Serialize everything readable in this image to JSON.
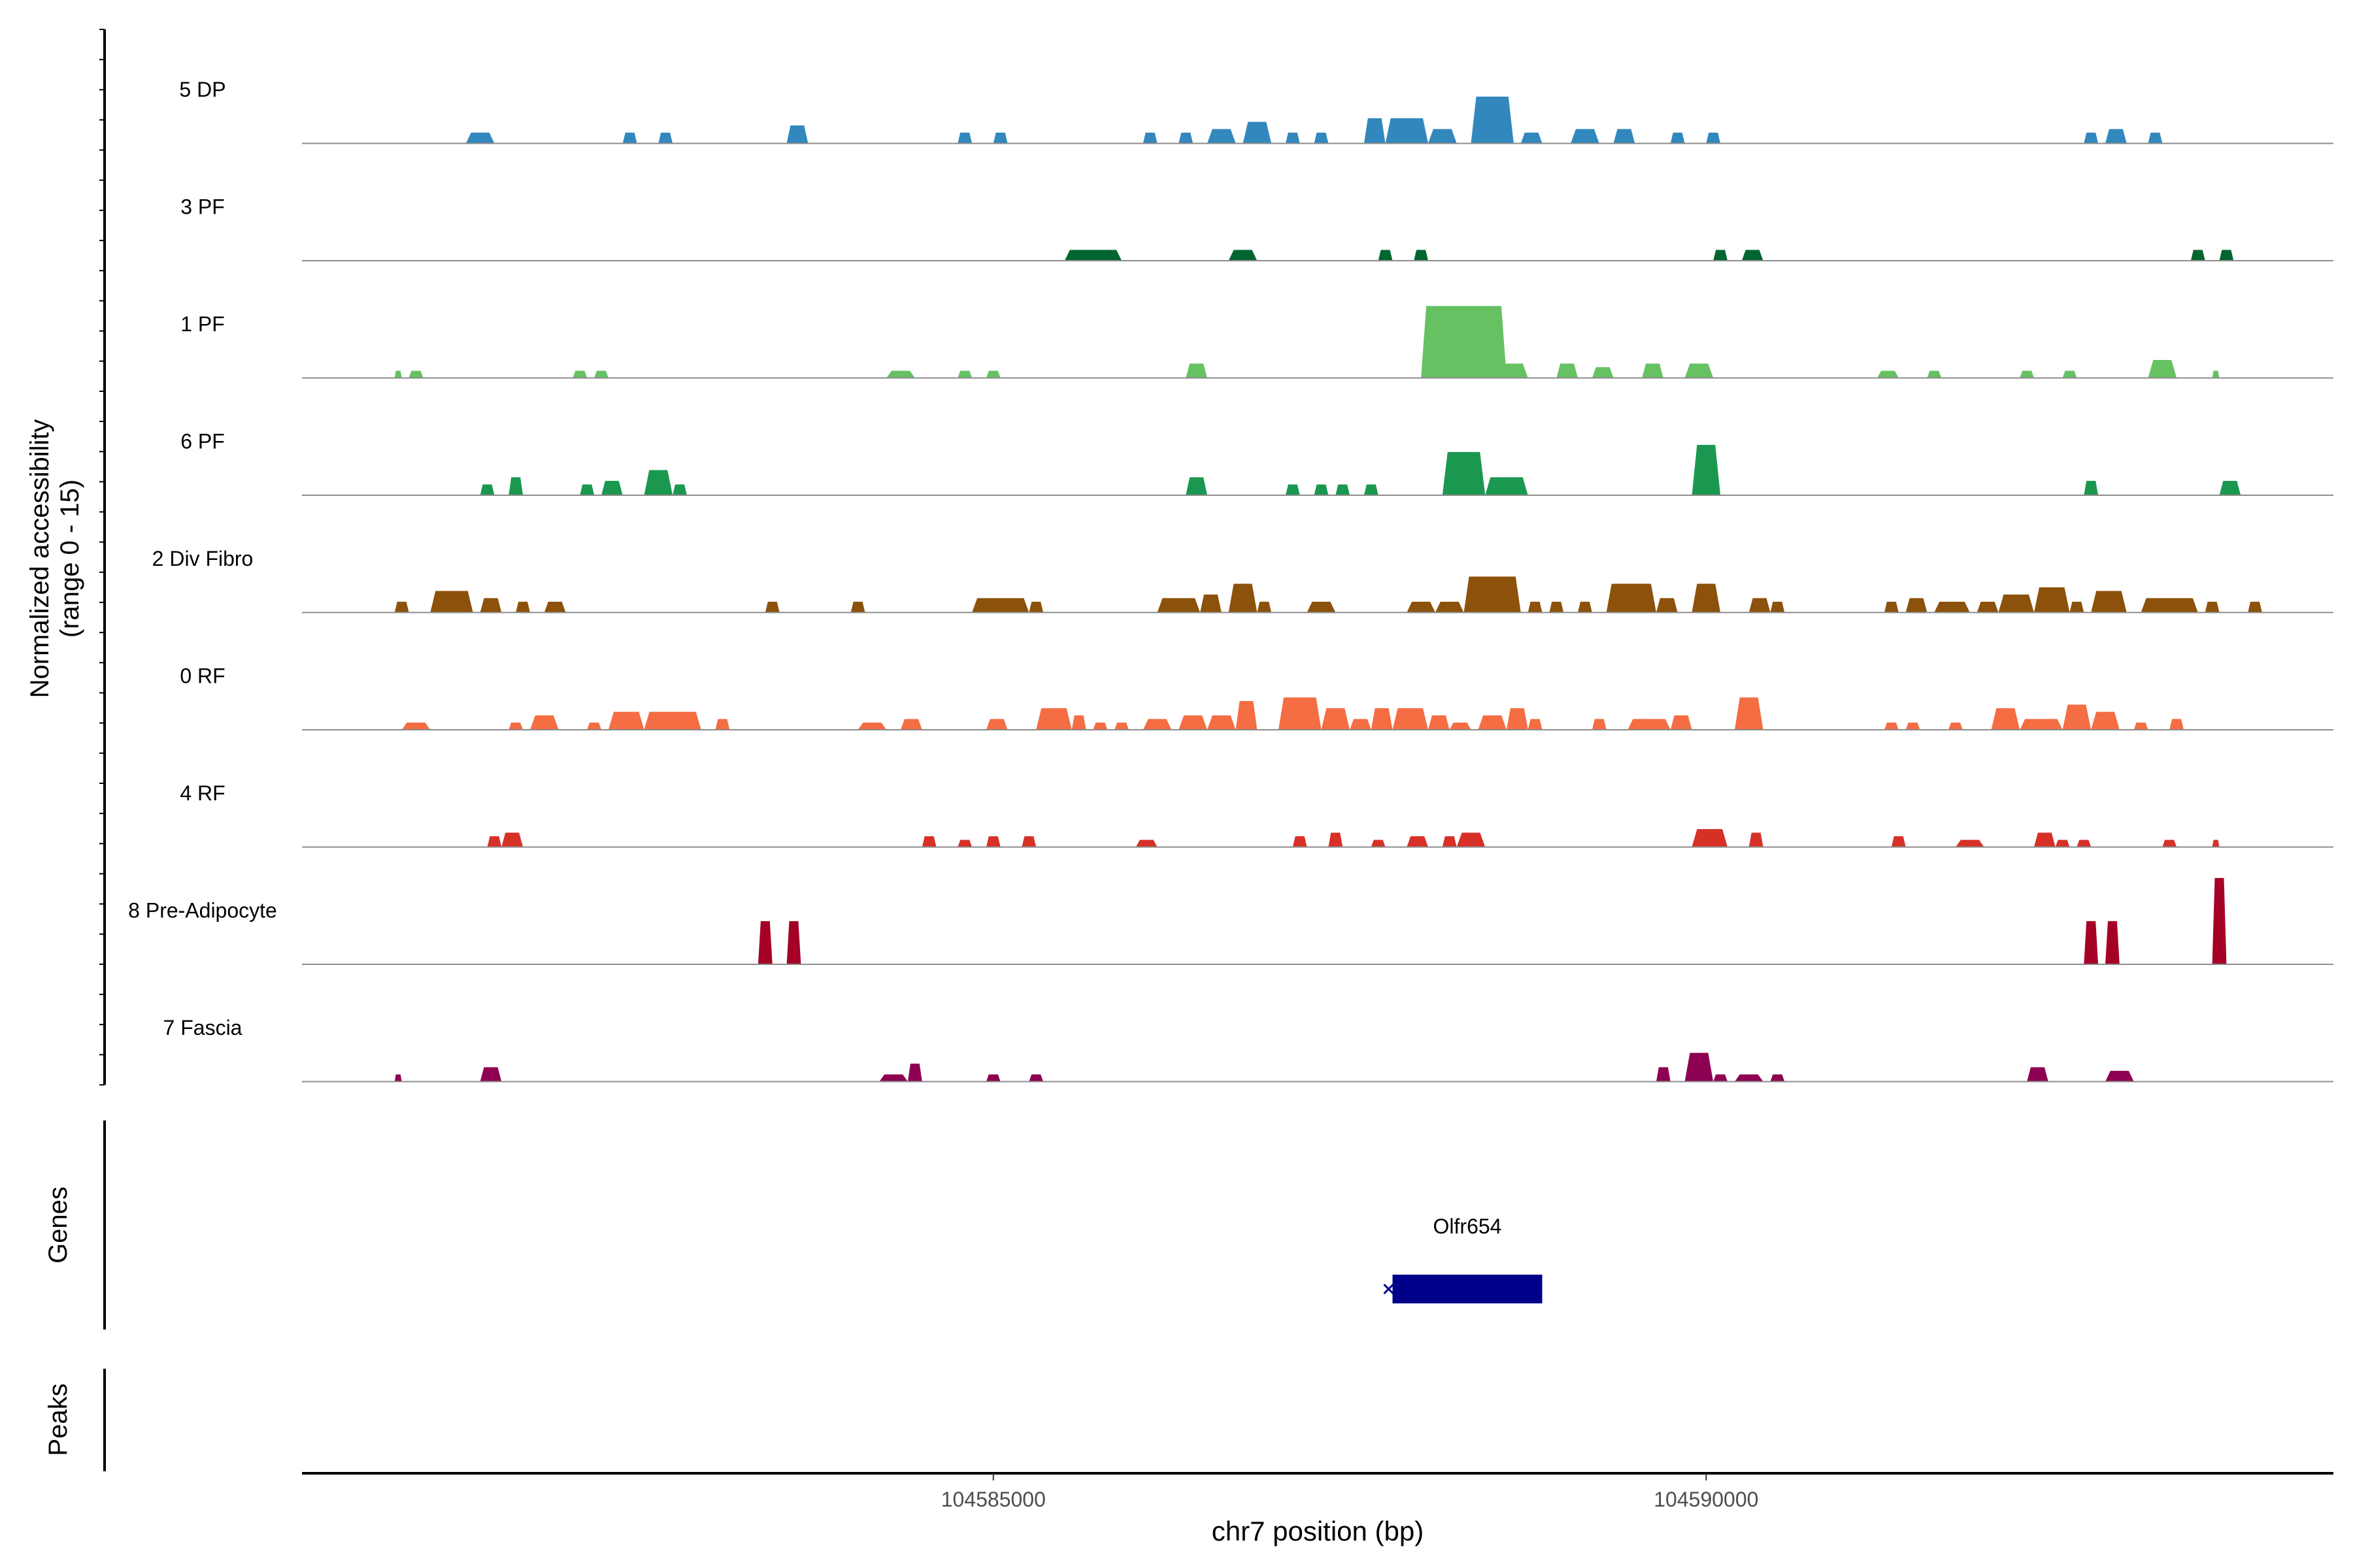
{
  "chart_data": {
    "type": "area",
    "chromosome": "chr7",
    "xlabel": "chr7 position (bp)",
    "ylabel_line1": "Normalized accessibility",
    "ylabel_line2": "(range 0 - 15)",
    "ylim": [
      0,
      15
    ],
    "xlim": [
      104580150,
      104594400
    ],
    "x_ticks": [
      104585000,
      104590000
    ],
    "x_tick_labels": [
      "104585000",
      "104590000"
    ],
    "genes_label": "Genes",
    "peaks_label": "Peaks",
    "genes": [
      {
        "name": "Olfr654",
        "start": 104587800,
        "end": 104588850,
        "strand": "-",
        "color": "#00008B"
      }
    ],
    "series": [
      {
        "name": "5 DP",
        "color": "#3288BD",
        "peaks": [
          [
            104581300,
            104581500,
            1.5
          ],
          [
            104582400,
            104582500,
            1.5
          ],
          [
            104582650,
            104582750,
            1.5
          ],
          [
            104583550,
            104583700,
            2.5
          ],
          [
            104584750,
            104584850,
            1.5
          ],
          [
            104585000,
            104585100,
            1.5
          ],
          [
            104586050,
            104586150,
            1.5
          ],
          [
            104586300,
            104586400,
            1.5
          ],
          [
            104586500,
            104586700,
            2
          ],
          [
            104586750,
            104586950,
            3
          ],
          [
            104587050,
            104587150,
            1.5
          ],
          [
            104587250,
            104587350,
            1.5
          ],
          [
            104587600,
            104587750,
            3.5
          ],
          [
            104587750,
            104588050,
            3.5
          ],
          [
            104588050,
            104588250,
            2
          ],
          [
            104588350,
            104588650,
            6.5
          ],
          [
            104588700,
            104588850,
            1.5
          ],
          [
            104589050,
            104589250,
            2
          ],
          [
            104589350,
            104589500,
            2
          ],
          [
            104589750,
            104589850,
            1.5
          ],
          [
            104590000,
            104590100,
            1.5
          ],
          [
            104592650,
            104592750,
            1.5
          ],
          [
            104592800,
            104592950,
            2
          ],
          [
            104593100,
            104593200,
            1.5
          ]
        ]
      },
      {
        "name": "3 PF",
        "color": "#00662F",
        "peaks": [
          [
            104585500,
            104585900,
            1.5
          ],
          [
            104586650,
            104586850,
            1.5
          ],
          [
            104587700,
            104587800,
            1.5
          ],
          [
            104587950,
            104588050,
            1.5
          ],
          [
            104590050,
            104590150,
            1.5
          ],
          [
            104590250,
            104590400,
            1.5
          ],
          [
            104593400,
            104593500,
            1.5
          ],
          [
            104593600,
            104593700,
            1.5
          ]
        ]
      },
      {
        "name": "1 PF",
        "color": "#66C163",
        "peaks": [
          [
            104580800,
            104580850,
            1
          ],
          [
            104580900,
            104581000,
            1
          ],
          [
            104582050,
            104582150,
            1
          ],
          [
            104582200,
            104582300,
            1
          ],
          [
            104584250,
            104584450,
            1
          ],
          [
            104584750,
            104584850,
            1
          ],
          [
            104584950,
            104585050,
            1
          ],
          [
            104586350,
            104586500,
            2
          ],
          [
            104588000,
            104588600,
            10
          ],
          [
            104588550,
            104588750,
            2
          ],
          [
            104588950,
            104589100,
            2
          ],
          [
            104589200,
            104589350,
            1.5
          ],
          [
            104589550,
            104589700,
            2
          ],
          [
            104589850,
            104590050,
            2
          ],
          [
            104591200,
            104591350,
            1
          ],
          [
            104591550,
            104591650,
            1
          ],
          [
            104592200,
            104592300,
            1
          ],
          [
            104592500,
            104592600,
            1
          ],
          [
            104593100,
            104593300,
            2.5
          ],
          [
            104593550,
            104593600,
            1
          ]
        ]
      },
      {
        "name": "6 PF",
        "color": "#1A9850",
        "peaks": [
          [
            104581400,
            104581500,
            1.5
          ],
          [
            104581600,
            104581700,
            2.5
          ],
          [
            104582100,
            104582200,
            1.5
          ],
          [
            104582250,
            104582400,
            2
          ],
          [
            104582550,
            104582750,
            3.5
          ],
          [
            104582750,
            104582850,
            1.5
          ],
          [
            104586350,
            104586500,
            2.5
          ],
          [
            104587050,
            104587150,
            1.5
          ],
          [
            104587250,
            104587350,
            1.5
          ],
          [
            104587400,
            104587500,
            1.5
          ],
          [
            104587600,
            104587700,
            1.5
          ],
          [
            104588150,
            104588450,
            6
          ],
          [
            104588450,
            104588750,
            2.5
          ],
          [
            104589900,
            104590100,
            7
          ],
          [
            104592650,
            104592750,
            2
          ],
          [
            104593600,
            104593750,
            2
          ]
        ]
      },
      {
        "name": "2 Div Fibro",
        "color": "#8C510A",
        "peaks": [
          [
            104580800,
            104580900,
            1.5
          ],
          [
            104581050,
            104581350,
            3
          ],
          [
            104581400,
            104581550,
            2
          ],
          [
            104581650,
            104581750,
            1.5
          ],
          [
            104581850,
            104582000,
            1.5
          ],
          [
            104583400,
            104583500,
            1.5
          ],
          [
            104584000,
            104584100,
            1.5
          ],
          [
            104584850,
            104585250,
            2
          ],
          [
            104585250,
            104585350,
            1.5
          ],
          [
            104586150,
            104586450,
            2
          ],
          [
            104586450,
            104586600,
            2.5
          ],
          [
            104586650,
            104586850,
            4
          ],
          [
            104586850,
            104586950,
            1.5
          ],
          [
            104587200,
            104587400,
            1.5
          ],
          [
            104587900,
            104588100,
            1.5
          ],
          [
            104588100,
            104588300,
            1.5
          ],
          [
            104588300,
            104588700,
            5
          ],
          [
            104588750,
            104588850,
            1.5
          ],
          [
            104588900,
            104589000,
            1.5
          ],
          [
            104589100,
            104589200,
            1.5
          ],
          [
            104589300,
            104589650,
            4
          ],
          [
            104589650,
            104589800,
            2
          ],
          [
            104589900,
            104590100,
            4
          ],
          [
            104590300,
            104590450,
            2
          ],
          [
            104590450,
            104590550,
            1.5
          ],
          [
            104591250,
            104591350,
            1.5
          ],
          [
            104591400,
            104591550,
            2
          ],
          [
            104591600,
            104591850,
            1.5
          ],
          [
            104591900,
            104592050,
            1.5
          ],
          [
            104592050,
            104592300,
            2.5
          ],
          [
            104592300,
            104592550,
            3.5
          ],
          [
            104592550,
            104592650,
            1.5
          ],
          [
            104592700,
            104592950,
            3
          ],
          [
            104593050,
            104593450,
            2
          ],
          [
            104593500,
            104593600,
            1.5
          ],
          [
            104593800,
            104593900,
            1.5
          ]
        ]
      },
      {
        "name": "0 RF",
        "color": "#F46D43",
        "peaks": [
          [
            104580850,
            104581050,
            1
          ],
          [
            104581600,
            104581700,
            1
          ],
          [
            104581750,
            104581950,
            2
          ],
          [
            104582150,
            104582250,
            1
          ],
          [
            104582300,
            104582550,
            2.5
          ],
          [
            104582550,
            104582950,
            2.5
          ],
          [
            104583050,
            104583150,
            1.5
          ],
          [
            104584050,
            104584250,
            1
          ],
          [
            104584350,
            104584500,
            1.5
          ],
          [
            104584950,
            104585100,
            1.5
          ],
          [
            104585300,
            104585550,
            3
          ],
          [
            104585550,
            104585650,
            2
          ],
          [
            104585700,
            104585800,
            1
          ],
          [
            104585850,
            104585950,
            1
          ],
          [
            104586050,
            104586250,
            1.5
          ],
          [
            104586300,
            104586500,
            2
          ],
          [
            104586500,
            104586700,
            2
          ],
          [
            104586700,
            104586850,
            4
          ],
          [
            104587000,
            104587300,
            4.5
          ],
          [
            104587300,
            104587500,
            3
          ],
          [
            104587500,
            104587650,
            1.5
          ],
          [
            104587650,
            104587800,
            3
          ],
          [
            104587800,
            104588050,
            3
          ],
          [
            104588050,
            104588200,
            2
          ],
          [
            104588200,
            104588350,
            1
          ],
          [
            104588400,
            104588600,
            2
          ],
          [
            104588600,
            104588750,
            3
          ],
          [
            104588750,
            104588850,
            1.5
          ],
          [
            104589200,
            104589300,
            1.5
          ],
          [
            104589450,
            104589750,
            1.5
          ],
          [
            104589750,
            104589900,
            2
          ],
          [
            104590200,
            104590400,
            4.5
          ],
          [
            104591250,
            104591350,
            1
          ],
          [
            104591400,
            104591500,
            1
          ],
          [
            104591700,
            104591800,
            1
          ],
          [
            104592000,
            104592200,
            3
          ],
          [
            104592200,
            104592500,
            1.5
          ],
          [
            104592500,
            104592700,
            3.5
          ],
          [
            104592700,
            104592900,
            2.5
          ],
          [
            104593000,
            104593100,
            1
          ],
          [
            104593250,
            104593350,
            1.5
          ]
        ]
      },
      {
        "name": "4 RF",
        "color": "#D73027",
        "peaks": [
          [
            104581450,
            104581550,
            1.5
          ],
          [
            104581550,
            104581700,
            2
          ],
          [
            104584500,
            104584600,
            1.5
          ],
          [
            104584750,
            104584850,
            1
          ],
          [
            104584950,
            104585050,
            1.5
          ],
          [
            104585200,
            104585300,
            1.5
          ],
          [
            104586000,
            104586150,
            1
          ],
          [
            104587100,
            104587200,
            1.5
          ],
          [
            104587350,
            104587450,
            2
          ],
          [
            104587650,
            104587750,
            1
          ],
          [
            104587900,
            104588050,
            1.5
          ],
          [
            104588150,
            104588250,
            1.5
          ],
          [
            104588250,
            104588450,
            2
          ],
          [
            104589900,
            104590150,
            2.5
          ],
          [
            104590300,
            104590400,
            2
          ],
          [
            104591300,
            104591400,
            1.5
          ],
          [
            104591750,
            104591950,
            1
          ],
          [
            104592300,
            104592450,
            2
          ],
          [
            104592450,
            104592550,
            1
          ],
          [
            104592600,
            104592700,
            1
          ],
          [
            104593200,
            104593300,
            1
          ],
          [
            104593550,
            104593600,
            1
          ]
        ]
      },
      {
        "name": "8 Pre-Adipocyte",
        "color": "#A50026",
        "peaks": [
          [
            104583350,
            104583450,
            6
          ],
          [
            104583550,
            104583650,
            6
          ],
          [
            104592650,
            104592750,
            6
          ],
          [
            104592800,
            104592900,
            6
          ],
          [
            104593550,
            104593650,
            12
          ]
        ]
      },
      {
        "name": "7 Fascia",
        "color": "#8E0152",
        "peaks": [
          [
            104580800,
            104580850,
            1
          ],
          [
            104581400,
            104581550,
            2
          ],
          [
            104584200,
            104584400,
            1
          ],
          [
            104584400,
            104584500,
            2.5
          ],
          [
            104584950,
            104585050,
            1
          ],
          [
            104585250,
            104585350,
            1
          ],
          [
            104589650,
            104589750,
            2
          ],
          [
            104589850,
            104590050,
            4
          ],
          [
            104590050,
            104590150,
            1
          ],
          [
            104590200,
            104590400,
            1
          ],
          [
            104590450,
            104590550,
            1
          ],
          [
            104592250,
            104592400,
            2
          ],
          [
            104592800,
            104593000,
            1.5
          ]
        ]
      }
    ]
  }
}
